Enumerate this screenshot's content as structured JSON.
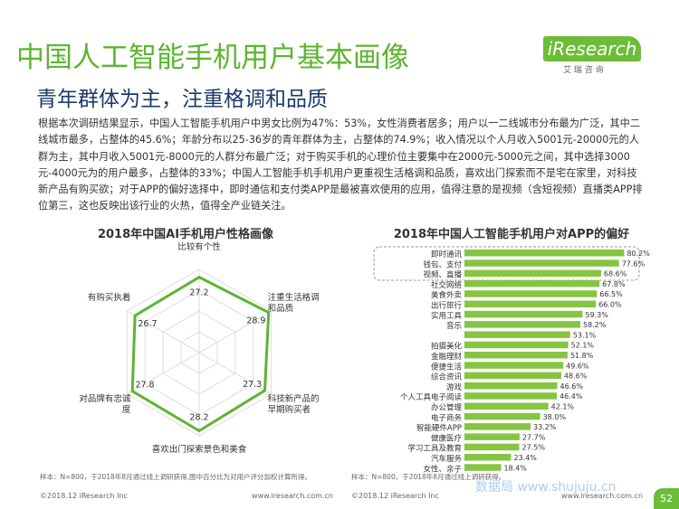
{
  "header": {
    "title": "中国人工智能手机用户基本画像",
    "subtitle": "青年群体为主，注重格调和品质",
    "logo": "iResearch",
    "logo_sub": "艾 瑞 咨 询",
    "paragraph": "根据本次调研结果显示，中国人工智能手机用户中男女比例为47%：53%，女性消费者居多；用户以一二线城市分布最为广泛，其中二线城市最多，占整体的45.6%；年龄分布以25-36岁的青年群体为主，占整体的74.9%；收入情况以个人月收入5001元-20000元的人群为主，其中月收入5001元-8000元的人群分布最广泛；对于购买手机的心理价位主要集中在2000元-5000元之间，其中选择3000元-4000元为的用户最多，占整体的33%；中国人工智能手机手机用户更重视生活格调和品质，喜欢出门探索而不是宅在家里，对科技新产品有购买欲；对于APP的偏好选择中，即时通信和支付类APP是最被喜欢使用的应用，值得注意的是视频（含短视频）直播类APP排位第三，这也反映出该行业的火热，值得全产业链关注。"
  },
  "chart_data": [
    {
      "type": "radar",
      "title": "2018年中国AI手机用户性格画像",
      "categories": [
        "比较有个性",
        "注重生活格调和品质",
        "科技新产品的早期购买者",
        "喜欢出门探索景色和美食",
        "对品牌有忠诚度",
        "有购买执着"
      ],
      "values": [
        27.2,
        28.9,
        27.3,
        28.2,
        27.8,
        26.7
      ],
      "rlim": [
        0,
        30
      ],
      "color": "#5cb531",
      "note": "样本：N=800，于2018年8月通过线上调研获得,图中百分比为对用户评分加权计算所得。"
    },
    {
      "type": "hbar",
      "title": "2018年中国人工智能手机用户对APP的偏好",
      "categories": [
        "即时通讯",
        "钱包、支付",
        "视频、直播",
        "社交网络",
        "美食外卖",
        "出行旅行",
        "实用工具",
        "音乐",
        null,
        "拍摄美化",
        "金融理财",
        "便捷生活",
        "综合资讯",
        "游戏",
        "个人工具电子阅读",
        "办公管理",
        "电子商务",
        "智能硬件APP",
        "健康医疗",
        "学习工具及教育",
        "汽车服务",
        "女性、亲子"
      ],
      "values": [
        80.2,
        77.6,
        68.6,
        67.8,
        66.5,
        66.0,
        59.3,
        58.2,
        53.1,
        52.1,
        51.8,
        49.6,
        48.6,
        46.6,
        46.4,
        42.1,
        38.0,
        33.2,
        27.7,
        27.5,
        23.4,
        18.4
      ],
      "value_labels": [
        "80.2%",
        "77.6%",
        "68.6%",
        "67.8%",
        "66.5%",
        "66.0%",
        "59.3%",
        "58.2%",
        "53.1%",
        "52.1%",
        "51.8%",
        "49.6%",
        "48.6%",
        "46.6%",
        "46.4%",
        "42.1%",
        "38.0%",
        "33.2%",
        "27.7%",
        "27.5%",
        "23.4%",
        "18.4%"
      ],
      "xlim": [
        0,
        85
      ],
      "color": "#86c443",
      "note": "样本：N=800，于2018年8月通过线上调研获得。"
    }
  ],
  "footer": {
    "left": "©2018.12 iResearch Inc",
    "left_url": "www.iresearch.com.cn",
    "right": "©2018.12 iResearch Inc",
    "right_url": "www.iresearch.com.cn",
    "watermark": "数据局 www.shujuju.cn",
    "page": "52"
  }
}
